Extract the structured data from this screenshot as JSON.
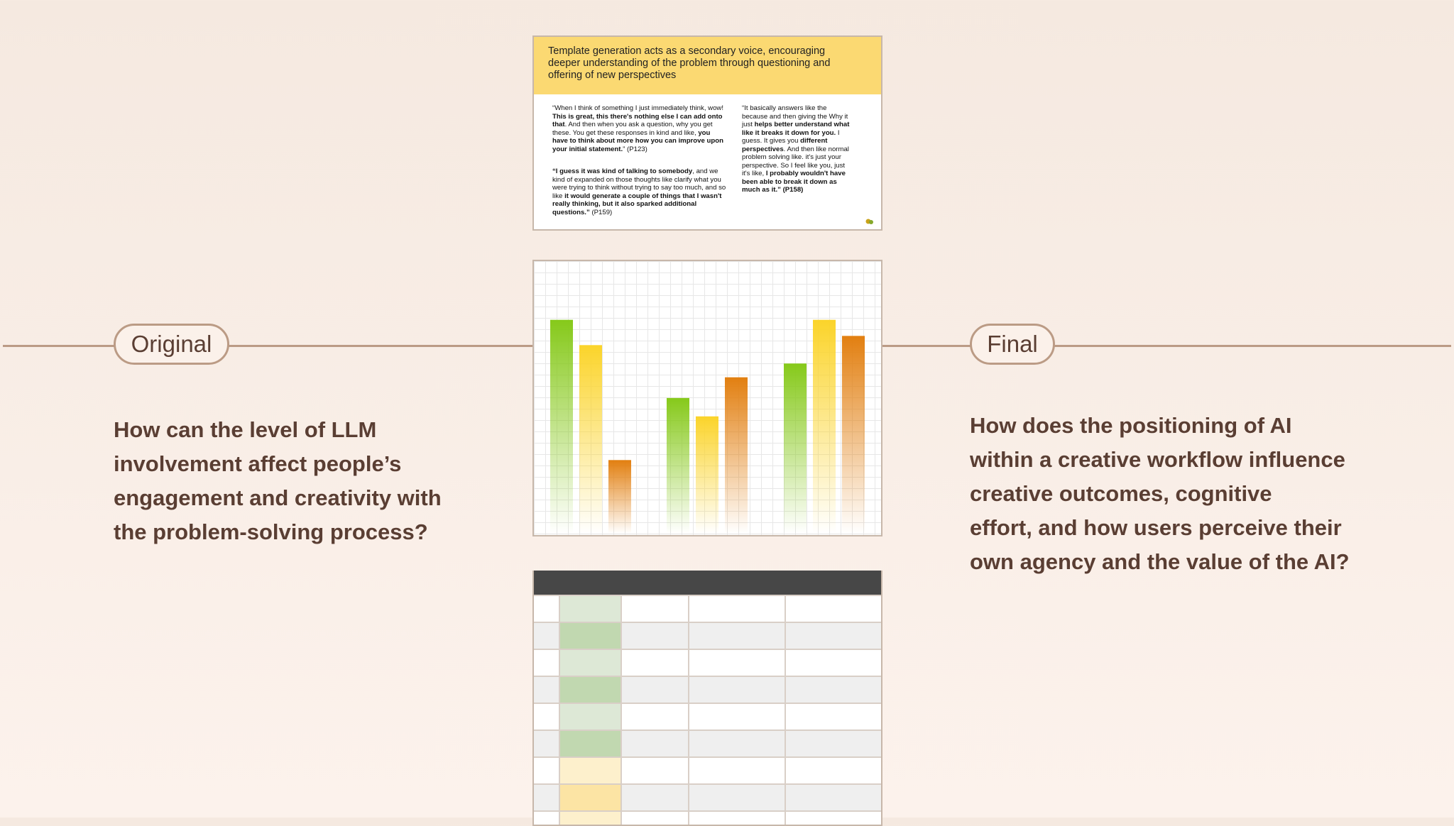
{
  "timeline": {
    "original_label": "Original",
    "final_label": "Final",
    "line_color": "#bb9b85"
  },
  "original_question": {
    "lines": [
      "How can the level of LLM",
      "involvement affect people’s",
      "engagement and creativity with",
      "the problem-solving process?"
    ]
  },
  "final_question": {
    "lines": [
      "How does the positioning of AI",
      "within a creative workflow influence",
      "creative outcomes, cognitive",
      "effort, and how users perceive their",
      "own agency and the value of the AI?"
    ]
  },
  "slide": {
    "heading_lines": [
      "Template generation acts as a secondary voice, encouraging",
      "deeper understanding of the problem through questioning and",
      "offering of new perspectives"
    ],
    "quote1": "“When I think of something I just immediately think, wow! <b>This is great, this there's nothing else I can add onto that</b>. And then when you ask a question, why you get these. You get these responses in kind and like, <b>you have to think about more how you can improve upon your initial statement.</b>” (P123)",
    "quote2": "<b>“I guess it was kind of talking to somebody</b>, and we kind of expanded on those thoughts like clarify what you were trying to think without trying to say too much, and so like <b>it would generate a couple of things that I wasn't really thinking, but it also sparked additional questions.”</b> (P159)",
    "quote3": "“It basically answers like the because and then giving the Why it just <b>helps better understand what like it breaks it down for you.</b> I guess. It gives you <b>different perspectives</b>. And then like normal problem solving like. it's just your perspective. So I feel like you, just it's like, <b>I probably wouldn't have been able to break it down as much as it.” (P158)</b>",
    "header_color": "#fbd972"
  },
  "chart_data": {
    "type": "bar",
    "categories": [
      "",
      "",
      ""
    ],
    "series": [
      {
        "values": [
          0.93,
          0.59,
          0.74
        ],
        "color": "#86c91a"
      },
      {
        "values": [
          0.82,
          0.51,
          0.93
        ],
        "color": "#fbd42a"
      },
      {
        "values": [
          0.32,
          0.68,
          0.86
        ],
        "color": "#e27f10"
      }
    ],
    "ylim": [
      0,
      1
    ],
    "grid": true
  },
  "table": {
    "header_color": "#474747",
    "col2_colors": [
      "#dde8d6",
      "#c1d8b0",
      "#dde8d6",
      "#c1d8b0",
      "#dde8d6",
      "#c1d8b0",
      "#fdf0cc",
      "#fce4a4",
      "#fdf0cc"
    ],
    "row_colors": [
      "#ffffff",
      "#efefef",
      "#ffffff",
      "#efefef",
      "#ffffff",
      "#efefef",
      "#ffffff",
      "#efefef",
      "#ffffff"
    ]
  }
}
